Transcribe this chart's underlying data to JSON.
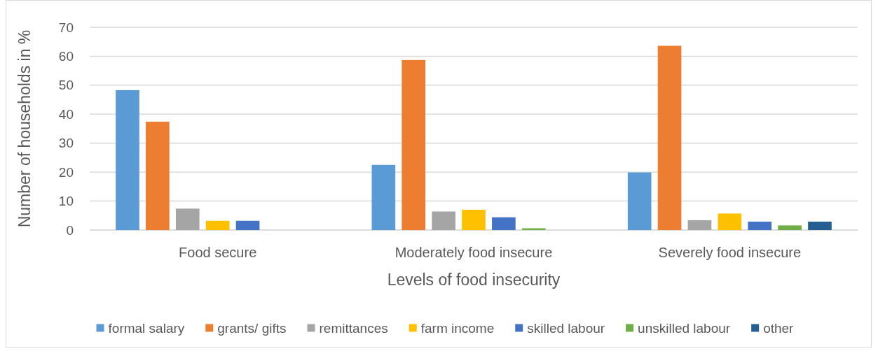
{
  "chart_data": {
    "type": "bar",
    "xlabel": "Levels of food insecurity",
    "ylabel": "Number of households in %",
    "categories": [
      "Food secure",
      "Moderately food insecure",
      "Severely food insecure"
    ],
    "series": [
      {
        "name": "formal salary",
        "color": "#5b9bd5",
        "values": [
          48.3,
          22.5,
          19.9
        ]
      },
      {
        "name": "grants/ gifts",
        "color": "#ed7d31",
        "values": [
          37.4,
          58.7,
          63.6
        ]
      },
      {
        "name": "remittances",
        "color": "#a5a5a5",
        "values": [
          7.4,
          6.4,
          3.4
        ]
      },
      {
        "name": "farm income",
        "color": "#ffc000",
        "values": [
          3.2,
          7.0,
          5.7
        ]
      },
      {
        "name": "skilled labour",
        "color": "#4472c4",
        "values": [
          3.2,
          4.4,
          2.9
        ]
      },
      {
        "name": "unskilled labour",
        "color": "#70ad47",
        "values": [
          null,
          0.6,
          1.6
        ]
      },
      {
        "name": "other",
        "color": "#255e91",
        "values": [
          null,
          null,
          2.9
        ]
      }
    ],
    "ylim": [
      0,
      70
    ],
    "yticks": [
      0,
      10,
      20,
      30,
      40,
      50,
      60,
      70
    ],
    "grid": "y",
    "legend": "bottom"
  }
}
